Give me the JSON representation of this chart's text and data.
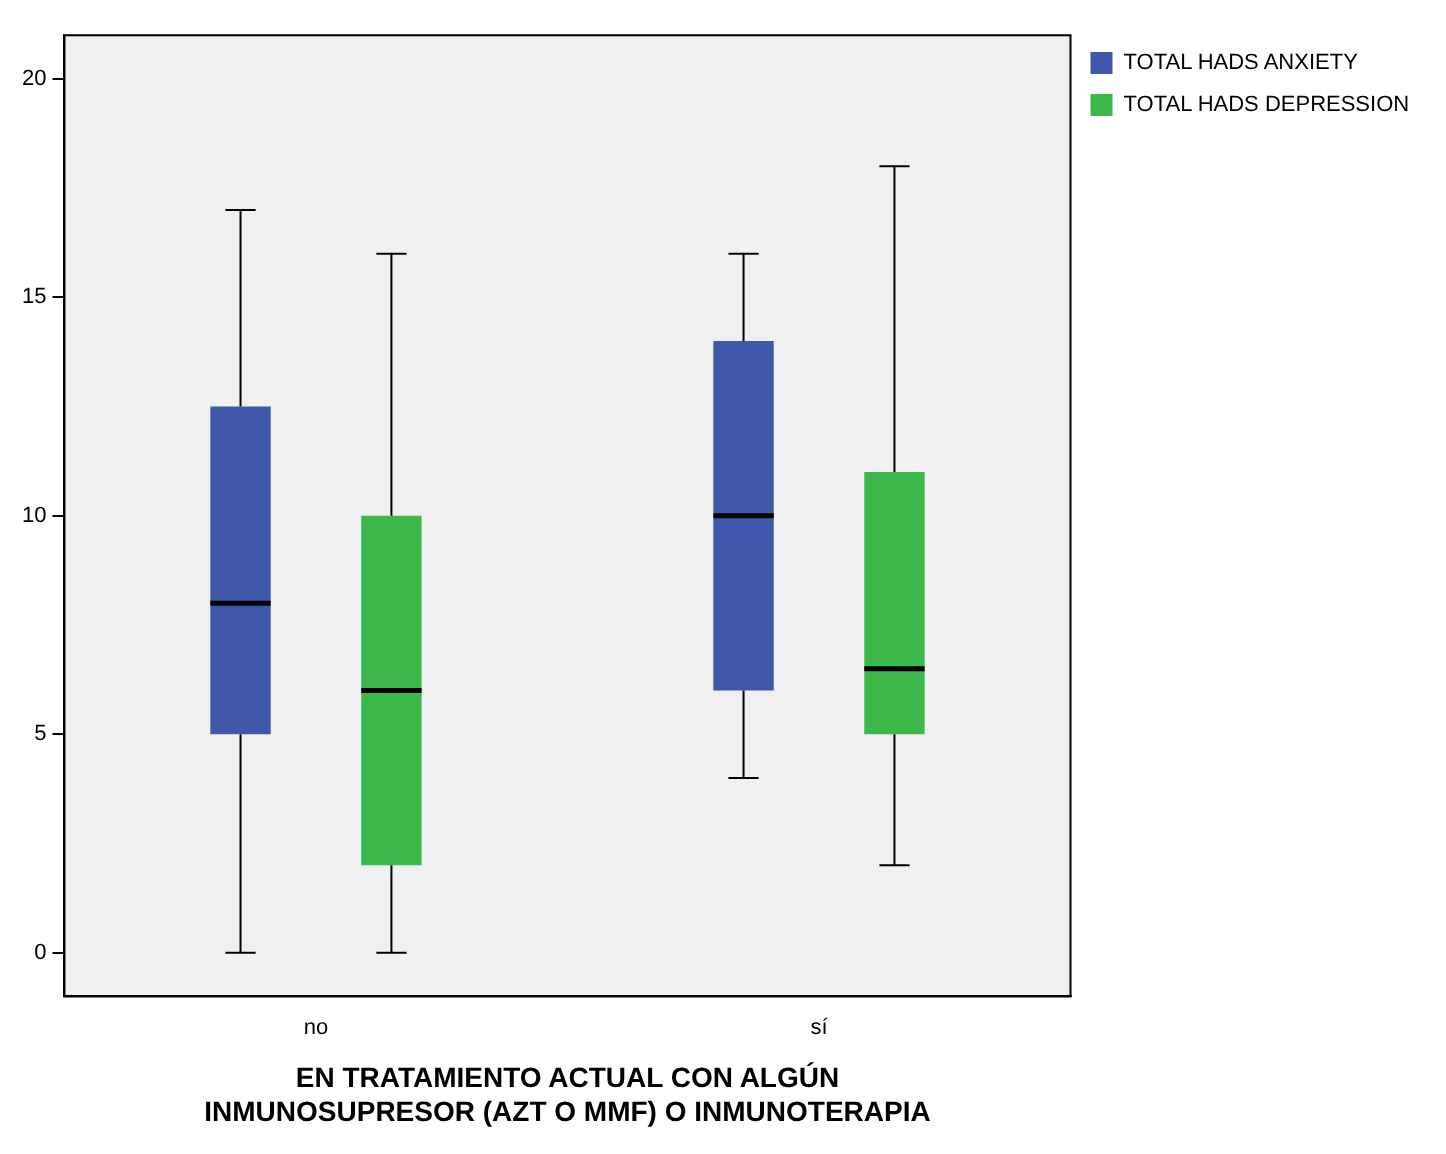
{
  "chart_data": {
    "type": "box",
    "xlabel": "EN TRATAMIENTO ACTUAL CON ALGÚN INMUNOSUPRESOR (AZT O MMF) O INMUNOTERAPIA",
    "categories": [
      "no",
      "sí"
    ],
    "series": [
      {
        "name": "TOTAL HADS ANXIETY",
        "color": "#3f58a9",
        "boxes": [
          {
            "low": 0,
            "q1": 5,
            "median": 8,
            "q3": 12.5,
            "high": 17
          },
          {
            "low": 4,
            "q1": 6,
            "median": 10,
            "q3": 14,
            "high": 16
          }
        ]
      },
      {
        "name": "TOTAL HADS DEPRESSION",
        "color": "#3cb94a",
        "boxes": [
          {
            "low": 0,
            "q1": 2,
            "median": 6,
            "q3": 10,
            "high": 16
          },
          {
            "low": 2,
            "q1": 5,
            "median": 6.5,
            "q3": 11,
            "high": 18
          }
        ]
      }
    ],
    "ylim": [
      -1,
      21
    ],
    "yticks": [
      0,
      5,
      10,
      15,
      20
    ],
    "grid": false,
    "legend": "top right"
  }
}
